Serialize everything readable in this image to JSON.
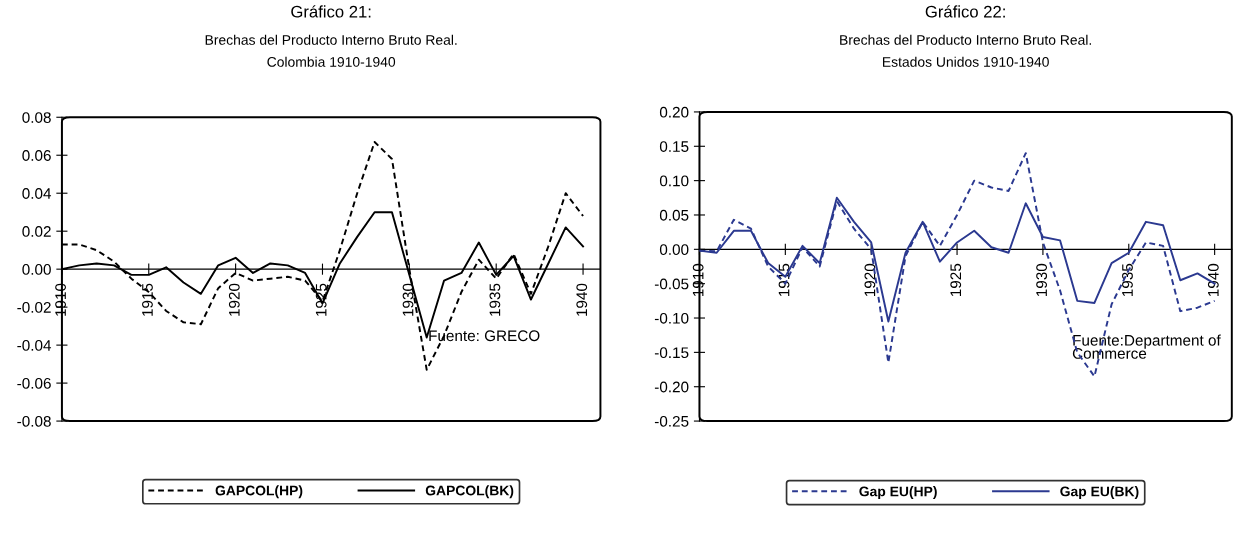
{
  "chart_data": [
    {
      "type": "line",
      "title": "Gráfico 21:",
      "subtitle": "Brechas del Producto Interno Bruto Real.\nColombia 1910-1940",
      "x": [
        1910,
        1911,
        1912,
        1913,
        1914,
        1915,
        1916,
        1917,
        1918,
        1919,
        1920,
        1921,
        1922,
        1923,
        1924,
        1925,
        1926,
        1927,
        1928,
        1929,
        1930,
        1931,
        1932,
        1933,
        1934,
        1935,
        1936,
        1937,
        1938,
        1939,
        1940
      ],
      "series": [
        {
          "name": "GAPCOL(HP)",
          "color": "#000000",
          "line_style": "dashed",
          "values": [
            0.013,
            0.013,
            0.01,
            0.004,
            -0.005,
            -0.012,
            -0.022,
            -0.028,
            -0.029,
            -0.01,
            -0.002,
            -0.006,
            -0.005,
            -0.004,
            -0.006,
            -0.017,
            0.01,
            0.04,
            0.067,
            0.058,
            0.0,
            -0.053,
            -0.035,
            -0.012,
            0.005,
            -0.005,
            0.008,
            -0.013,
            0.012,
            0.04,
            0.028
          ]
        },
        {
          "name": "GAPCOL(BK)",
          "color": "#000000",
          "line_style": "solid",
          "values": [
            0.0,
            0.002,
            0.003,
            0.002,
            -0.003,
            -0.003,
            0.001,
            -0.007,
            -0.013,
            0.002,
            0.006,
            -0.002,
            0.003,
            0.002,
            -0.002,
            -0.018,
            0.003,
            0.017,
            0.03,
            0.03,
            -0.003,
            -0.036,
            -0.006,
            -0.002,
            0.014,
            -0.003,
            0.007,
            -0.016,
            0.003,
            0.022,
            0.012
          ]
        }
      ],
      "xlim": [
        1910,
        1941
      ],
      "xticks": [
        1910,
        1915,
        1920,
        1925,
        1930,
        1935,
        1940
      ],
      "ylim": [
        -0.08,
        0.08
      ],
      "yticks": [
        {
          "value": -0.08,
          "label": "-0.08"
        },
        {
          "value": -0.06,
          "label": "-0.06"
        },
        {
          "value": -0.04,
          "label": "-0.04"
        },
        {
          "value": -0.02,
          "label": "-0.02"
        },
        {
          "value": 0,
          "label": "0.00"
        },
        {
          "value": 0.02,
          "label": "0.02"
        },
        {
          "value": 0.04,
          "label": "0.04"
        },
        {
          "value": 0.06,
          "label": "0.06"
        },
        {
          "value": 0.08,
          "label": "0.08"
        }
      ],
      "annotations": [
        "Fuente: GRECO"
      ],
      "legend": "bottom",
      "grid": false
    },
    {
      "type": "line",
      "title": "Gráfico 22:",
      "subtitle": "Brechas del Producto Interno Bruto Real.\nEstados Unidos 1910-1940",
      "x": [
        1910,
        1911,
        1912,
        1913,
        1914,
        1915,
        1916,
        1917,
        1918,
        1919,
        1920,
        1921,
        1922,
        1923,
        1924,
        1925,
        1926,
        1927,
        1928,
        1929,
        1930,
        1931,
        1932,
        1933,
        1934,
        1935,
        1936,
        1937,
        1938,
        1939,
        1940
      ],
      "series": [
        {
          "name": "Gap EU(HP)",
          "color": "#2b3990",
          "line_style": "dashed",
          "values": [
            -0.002,
            -0.003,
            0.043,
            0.03,
            -0.025,
            -0.05,
            0.003,
            -0.025,
            0.07,
            0.03,
            0.0,
            -0.165,
            -0.01,
            0.04,
            0.005,
            0.05,
            0.1,
            0.09,
            0.085,
            0.14,
            0.01,
            -0.06,
            -0.15,
            -0.185,
            -0.08,
            -0.03,
            0.01,
            0.005,
            -0.09,
            -0.085,
            -0.075
          ]
        },
        {
          "name": "Gap EU(BK)",
          "color": "#2b3990",
          "line_style": "solid",
          "values": [
            -0.002,
            -0.005,
            0.027,
            0.027,
            -0.02,
            -0.04,
            0.005,
            -0.02,
            0.075,
            0.04,
            0.01,
            -0.105,
            -0.005,
            0.04,
            -0.018,
            0.01,
            0.027,
            0.003,
            -0.005,
            0.067,
            0.018,
            0.013,
            -0.075,
            -0.078,
            -0.02,
            -0.005,
            0.04,
            0.035,
            -0.045,
            -0.035,
            -0.05
          ]
        }
      ],
      "xlim": [
        1910,
        1941
      ],
      "xticks": [
        1910,
        1915,
        1920,
        1925,
        1930,
        1935,
        1940
      ],
      "ylim": [
        -0.25,
        0.2
      ],
      "yticks": [
        {
          "value": -0.25,
          "label": "-0.25"
        },
        {
          "value": -0.2,
          "label": "-0.20"
        },
        {
          "value": -0.15,
          "label": "-0.15"
        },
        {
          "value": -0.1,
          "label": "-0.10"
        },
        {
          "value": -0.05,
          "label": "-0.05"
        },
        {
          "value": 0,
          "label": "0.00"
        },
        {
          "value": 0.05,
          "label": "0.05"
        },
        {
          "value": 0.1,
          "label": "0.10"
        },
        {
          "value": 0.15,
          "label": "0.15"
        },
        {
          "value": 0.2,
          "label": "0.20"
        }
      ],
      "annotations": [
        "Fuente:Department of\nCommerce"
      ],
      "legend": "bottom",
      "grid": false
    }
  ]
}
